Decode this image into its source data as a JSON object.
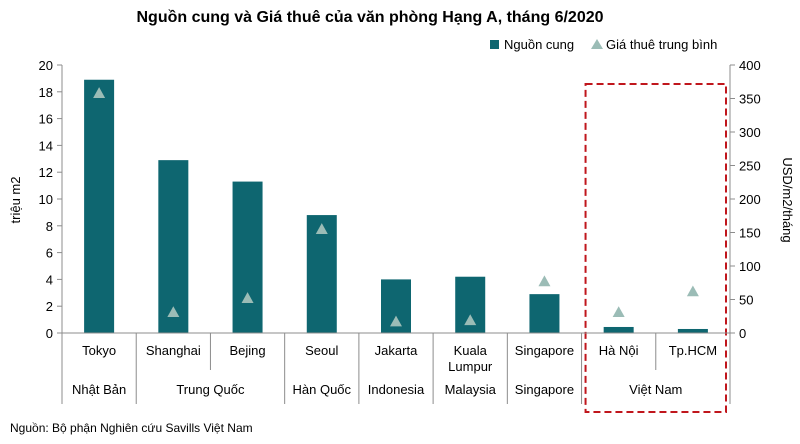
{
  "chart_data": {
    "type": "bar",
    "title": "Nguồn cung và Giá thuê của văn phòng Hạng A, tháng 6/2020",
    "categories": [
      "Tokyo",
      "Shanghai",
      "Bejing",
      "Seoul",
      "Jakarta",
      "Kuala\nLumpur",
      "Singapore",
      "Hà Nội",
      "Tp.HCM"
    ],
    "category_lines": [
      [
        "Tokyo"
      ],
      [
        "Shanghai"
      ],
      [
        "Bejing"
      ],
      [
        "Seoul"
      ],
      [
        "Jakarta"
      ],
      [
        "Kuala",
        "Lumpur"
      ],
      [
        "Singapore"
      ],
      [
        "Hà Nội"
      ],
      [
        "Tp.HCM"
      ]
    ],
    "groups": [
      {
        "label": "Nhật Bản",
        "span": 1
      },
      {
        "label": "Trung Quốc",
        "span": 2
      },
      {
        "label": "Hàn Quốc",
        "span": 1
      },
      {
        "label": "Indonesia",
        "span": 1
      },
      {
        "label": "Malaysia",
        "span": 1
      },
      {
        "label": "Singapore",
        "span": 1
      },
      {
        "label": "Việt Nam",
        "span": 2
      }
    ],
    "series": [
      {
        "name": "Nguồn cung",
        "axis": "left",
        "mark": "bar",
        "color": "#0e6670",
        "values": [
          18.9,
          12.9,
          11.3,
          8.8,
          4.0,
          4.2,
          2.9,
          0.45,
          0.3
        ]
      },
      {
        "name": "Giá thuê trung bình",
        "axis": "right",
        "mark": "triangle",
        "color": "#9bbcb6",
        "values": [
          358,
          31,
          52,
          155,
          17,
          19,
          77,
          31,
          62
        ]
      }
    ],
    "ylabel": "triệu m2",
    "ylim": [
      0,
      20
    ],
    "yticks": [
      0,
      2,
      4,
      6,
      8,
      10,
      12,
      14,
      16,
      18,
      20
    ],
    "y2label": "USD/m2/tháng",
    "y2lim": [
      0,
      400
    ],
    "y2ticks": [
      0,
      50,
      100,
      150,
      200,
      250,
      300,
      350,
      400
    ],
    "legend_position": "top-right",
    "highlight": {
      "categories": [
        "Hà Nội",
        "Tp.HCM"
      ],
      "style": "dashed",
      "color": "#c0161c"
    },
    "grid": false
  },
  "source": "Nguồn: Bộ phận Nghiên cứu Savills Việt Nam"
}
